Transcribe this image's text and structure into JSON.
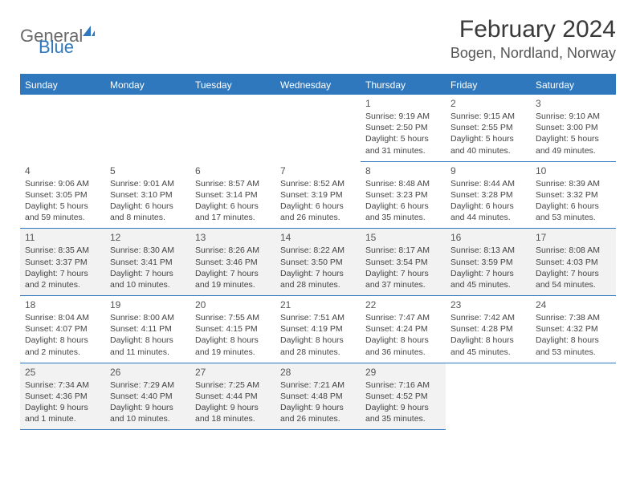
{
  "logo": {
    "general": "General",
    "blue": "Blue"
  },
  "title": "February 2024",
  "location": "Bogen, Nordland, Norway",
  "days": [
    "Sunday",
    "Monday",
    "Tuesday",
    "Wednesday",
    "Thursday",
    "Friday",
    "Saturday"
  ],
  "colors": {
    "accent": "#2f78bd",
    "alt_row": "#f2f2f2",
    "text": "#333333",
    "background": "#ffffff"
  },
  "grid": [
    [
      null,
      null,
      null,
      null,
      {
        "n": "1",
        "sr": "Sunrise: 9:19 AM",
        "ss": "Sunset: 2:50 PM",
        "d1": "Daylight: 5 hours",
        "d2": "and 31 minutes."
      },
      {
        "n": "2",
        "sr": "Sunrise: 9:15 AM",
        "ss": "Sunset: 2:55 PM",
        "d1": "Daylight: 5 hours",
        "d2": "and 40 minutes."
      },
      {
        "n": "3",
        "sr": "Sunrise: 9:10 AM",
        "ss": "Sunset: 3:00 PM",
        "d1": "Daylight: 5 hours",
        "d2": "and 49 minutes."
      }
    ],
    [
      {
        "n": "4",
        "sr": "Sunrise: 9:06 AM",
        "ss": "Sunset: 3:05 PM",
        "d1": "Daylight: 5 hours",
        "d2": "and 59 minutes."
      },
      {
        "n": "5",
        "sr": "Sunrise: 9:01 AM",
        "ss": "Sunset: 3:10 PM",
        "d1": "Daylight: 6 hours",
        "d2": "and 8 minutes."
      },
      {
        "n": "6",
        "sr": "Sunrise: 8:57 AM",
        "ss": "Sunset: 3:14 PM",
        "d1": "Daylight: 6 hours",
        "d2": "and 17 minutes."
      },
      {
        "n": "7",
        "sr": "Sunrise: 8:52 AM",
        "ss": "Sunset: 3:19 PM",
        "d1": "Daylight: 6 hours",
        "d2": "and 26 minutes."
      },
      {
        "n": "8",
        "sr": "Sunrise: 8:48 AM",
        "ss": "Sunset: 3:23 PM",
        "d1": "Daylight: 6 hours",
        "d2": "and 35 minutes."
      },
      {
        "n": "9",
        "sr": "Sunrise: 8:44 AM",
        "ss": "Sunset: 3:28 PM",
        "d1": "Daylight: 6 hours",
        "d2": "and 44 minutes."
      },
      {
        "n": "10",
        "sr": "Sunrise: 8:39 AM",
        "ss": "Sunset: 3:32 PM",
        "d1": "Daylight: 6 hours",
        "d2": "and 53 minutes."
      }
    ],
    [
      {
        "n": "11",
        "sr": "Sunrise: 8:35 AM",
        "ss": "Sunset: 3:37 PM",
        "d1": "Daylight: 7 hours",
        "d2": "and 2 minutes."
      },
      {
        "n": "12",
        "sr": "Sunrise: 8:30 AM",
        "ss": "Sunset: 3:41 PM",
        "d1": "Daylight: 7 hours",
        "d2": "and 10 minutes."
      },
      {
        "n": "13",
        "sr": "Sunrise: 8:26 AM",
        "ss": "Sunset: 3:46 PM",
        "d1": "Daylight: 7 hours",
        "d2": "and 19 minutes."
      },
      {
        "n": "14",
        "sr": "Sunrise: 8:22 AM",
        "ss": "Sunset: 3:50 PM",
        "d1": "Daylight: 7 hours",
        "d2": "and 28 minutes."
      },
      {
        "n": "15",
        "sr": "Sunrise: 8:17 AM",
        "ss": "Sunset: 3:54 PM",
        "d1": "Daylight: 7 hours",
        "d2": "and 37 minutes."
      },
      {
        "n": "16",
        "sr": "Sunrise: 8:13 AM",
        "ss": "Sunset: 3:59 PM",
        "d1": "Daylight: 7 hours",
        "d2": "and 45 minutes."
      },
      {
        "n": "17",
        "sr": "Sunrise: 8:08 AM",
        "ss": "Sunset: 4:03 PM",
        "d1": "Daylight: 7 hours",
        "d2": "and 54 minutes."
      }
    ],
    [
      {
        "n": "18",
        "sr": "Sunrise: 8:04 AM",
        "ss": "Sunset: 4:07 PM",
        "d1": "Daylight: 8 hours",
        "d2": "and 2 minutes."
      },
      {
        "n": "19",
        "sr": "Sunrise: 8:00 AM",
        "ss": "Sunset: 4:11 PM",
        "d1": "Daylight: 8 hours",
        "d2": "and 11 minutes."
      },
      {
        "n": "20",
        "sr": "Sunrise: 7:55 AM",
        "ss": "Sunset: 4:15 PM",
        "d1": "Daylight: 8 hours",
        "d2": "and 19 minutes."
      },
      {
        "n": "21",
        "sr": "Sunrise: 7:51 AM",
        "ss": "Sunset: 4:19 PM",
        "d1": "Daylight: 8 hours",
        "d2": "and 28 minutes."
      },
      {
        "n": "22",
        "sr": "Sunrise: 7:47 AM",
        "ss": "Sunset: 4:24 PM",
        "d1": "Daylight: 8 hours",
        "d2": "and 36 minutes."
      },
      {
        "n": "23",
        "sr": "Sunrise: 7:42 AM",
        "ss": "Sunset: 4:28 PM",
        "d1": "Daylight: 8 hours",
        "d2": "and 45 minutes."
      },
      {
        "n": "24",
        "sr": "Sunrise: 7:38 AM",
        "ss": "Sunset: 4:32 PM",
        "d1": "Daylight: 8 hours",
        "d2": "and 53 minutes."
      }
    ],
    [
      {
        "n": "25",
        "sr": "Sunrise: 7:34 AM",
        "ss": "Sunset: 4:36 PM",
        "d1": "Daylight: 9 hours",
        "d2": "and 1 minute."
      },
      {
        "n": "26",
        "sr": "Sunrise: 7:29 AM",
        "ss": "Sunset: 4:40 PM",
        "d1": "Daylight: 9 hours",
        "d2": "and 10 minutes."
      },
      {
        "n": "27",
        "sr": "Sunrise: 7:25 AM",
        "ss": "Sunset: 4:44 PM",
        "d1": "Daylight: 9 hours",
        "d2": "and 18 minutes."
      },
      {
        "n": "28",
        "sr": "Sunrise: 7:21 AM",
        "ss": "Sunset: 4:48 PM",
        "d1": "Daylight: 9 hours",
        "d2": "and 26 minutes."
      },
      {
        "n": "29",
        "sr": "Sunrise: 7:16 AM",
        "ss": "Sunset: 4:52 PM",
        "d1": "Daylight: 9 hours",
        "d2": "and 35 minutes."
      },
      null,
      null
    ]
  ]
}
